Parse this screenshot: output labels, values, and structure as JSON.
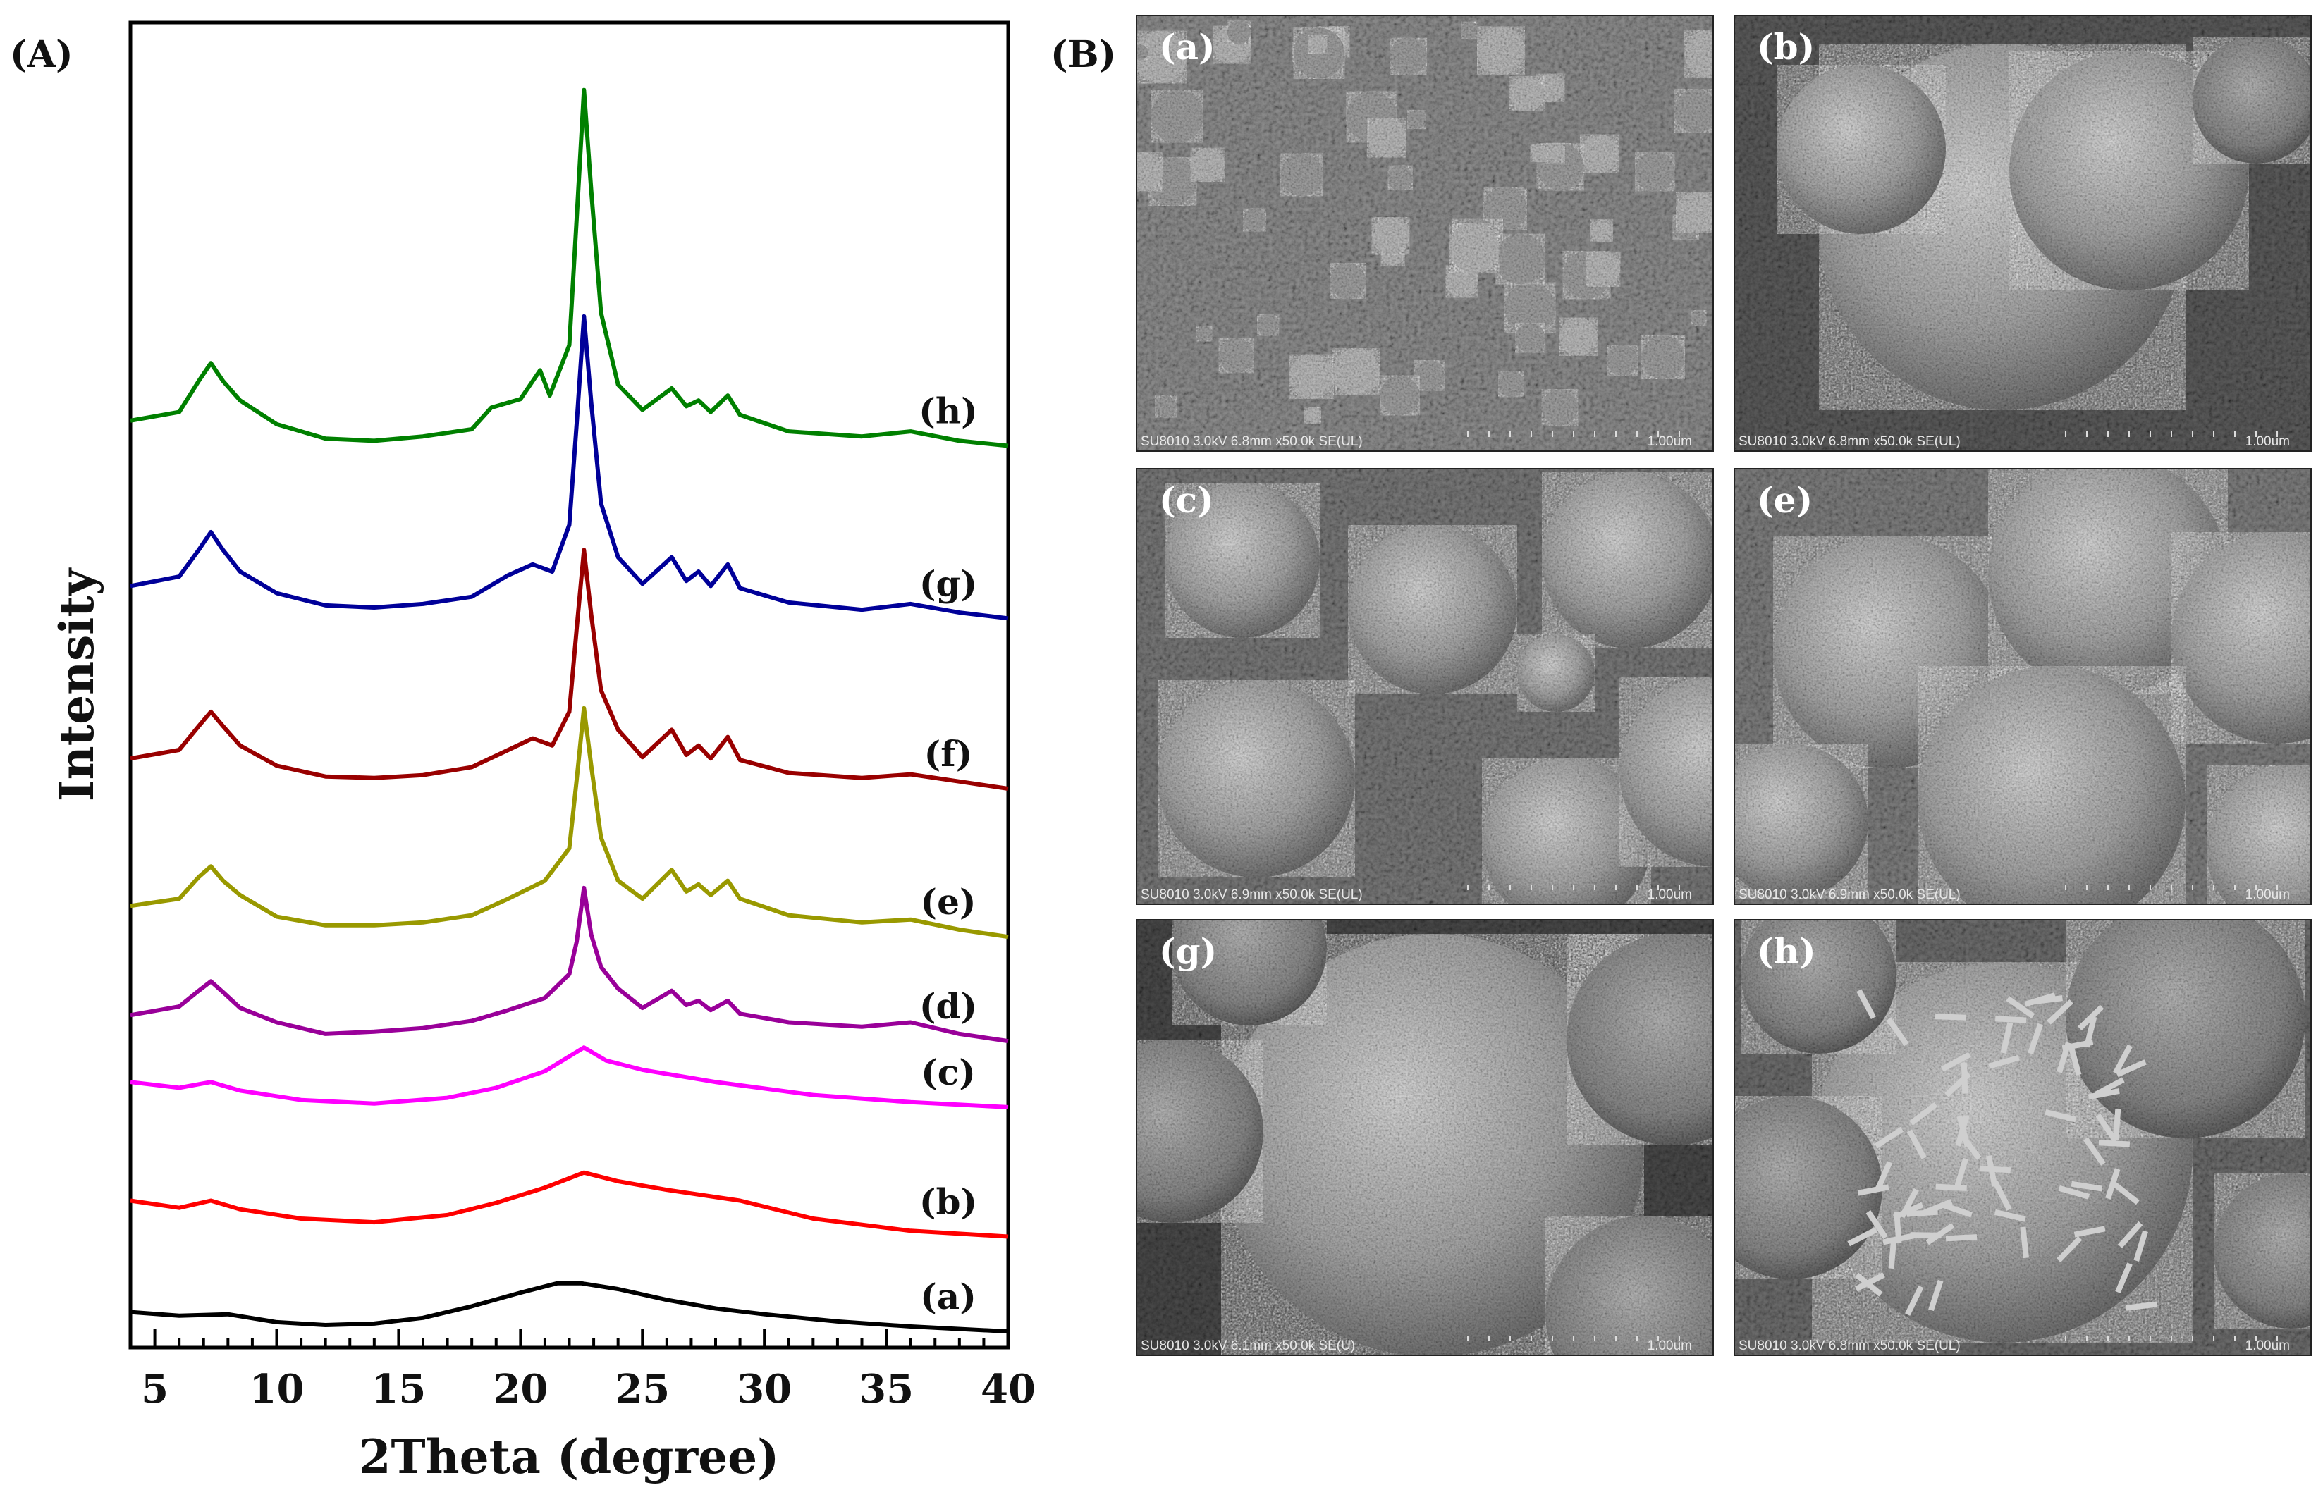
{
  "panels": {
    "A": "(A)",
    "B": "(B)"
  },
  "chart_data": {
    "type": "line",
    "xlabel": "2Theta (degree)",
    "ylabel": "Intensity",
    "xlim": [
      4,
      40
    ],
    "xticks": [
      5,
      10,
      15,
      20,
      25,
      30,
      35,
      40
    ],
    "yticks_shown": false,
    "grid": false,
    "legend": "inline labels at right",
    "series": [
      {
        "name": "(a)",
        "color": "#000000",
        "baseline": 0.0,
        "points": [
          [
            4,
            0.2
          ],
          [
            6,
            0.15
          ],
          [
            8,
            0.17
          ],
          [
            10,
            0.06
          ],
          [
            12,
            0.02
          ],
          [
            14,
            0.04
          ],
          [
            16,
            0.12
          ],
          [
            18,
            0.28
          ],
          [
            20,
            0.47
          ],
          [
            21.5,
            0.6
          ],
          [
            22.5,
            0.6
          ],
          [
            24,
            0.52
          ],
          [
            26,
            0.37
          ],
          [
            28,
            0.25
          ],
          [
            30,
            0.17
          ],
          [
            31.5,
            0.12
          ],
          [
            33,
            0.07
          ],
          [
            36,
            0.0
          ],
          [
            40,
            -0.07
          ]
        ]
      },
      {
        "name": "(b)",
        "color": "#ff0000",
        "baseline": 1.75,
        "points": [
          [
            4,
            0.0
          ],
          [
            6,
            -0.1
          ],
          [
            7.3,
            0.0
          ],
          [
            8.5,
            -0.12
          ],
          [
            11,
            -0.25
          ],
          [
            14,
            -0.3
          ],
          [
            17,
            -0.2
          ],
          [
            19,
            -0.03
          ],
          [
            21,
            0.18
          ],
          [
            22.6,
            0.39
          ],
          [
            24,
            0.27
          ],
          [
            26,
            0.15
          ],
          [
            29,
            0.0
          ],
          [
            32,
            -0.25
          ],
          [
            36,
            -0.42
          ],
          [
            40,
            -0.5
          ]
        ]
      },
      {
        "name": "(c)",
        "color": "#ff00ff",
        "baseline": 3.1,
        "points": [
          [
            4,
            0.3
          ],
          [
            6,
            0.22
          ],
          [
            7.3,
            0.3
          ],
          [
            8.5,
            0.18
          ],
          [
            11,
            0.05
          ],
          [
            14,
            0.0
          ],
          [
            17,
            0.08
          ],
          [
            19,
            0.22
          ],
          [
            21,
            0.45
          ],
          [
            22.6,
            0.78
          ],
          [
            23.5,
            0.6
          ],
          [
            25,
            0.47
          ],
          [
            28,
            0.3
          ],
          [
            32,
            0.12
          ],
          [
            36,
            0.02
          ],
          [
            40,
            -0.05
          ]
        ]
      },
      {
        "name": "(d)",
        "color": "#990099",
        "baseline": 3.95,
        "points": [
          [
            4,
            0.38
          ],
          [
            6,
            0.5
          ],
          [
            6.8,
            0.72
          ],
          [
            7.3,
            0.85
          ],
          [
            7.8,
            0.7
          ],
          [
            8.5,
            0.48
          ],
          [
            10,
            0.28
          ],
          [
            12,
            0.12
          ],
          [
            14,
            0.15
          ],
          [
            16,
            0.2
          ],
          [
            18,
            0.3
          ],
          [
            19.5,
            0.45
          ],
          [
            21,
            0.62
          ],
          [
            22,
            0.95
          ],
          [
            22.3,
            1.4
          ],
          [
            22.6,
            2.15
          ],
          [
            22.9,
            1.5
          ],
          [
            23.3,
            1.05
          ],
          [
            24,
            0.75
          ],
          [
            25,
            0.48
          ],
          [
            26.2,
            0.72
          ],
          [
            26.8,
            0.52
          ],
          [
            27.3,
            0.58
          ],
          [
            27.8,
            0.45
          ],
          [
            28.5,
            0.58
          ],
          [
            29,
            0.4
          ],
          [
            31,
            0.28
          ],
          [
            34,
            0.22
          ],
          [
            36,
            0.28
          ],
          [
            38,
            0.12
          ],
          [
            40,
            0.02
          ]
        ]
      },
      {
        "name": "(e)",
        "color": "#999900",
        "baseline": 5.0,
        "points": [
          [
            4,
            0.85
          ],
          [
            6,
            0.95
          ],
          [
            6.8,
            1.25
          ],
          [
            7.3,
            1.4
          ],
          [
            7.8,
            1.2
          ],
          [
            8.5,
            1.0
          ],
          [
            10,
            0.7
          ],
          [
            12,
            0.58
          ],
          [
            14,
            0.58
          ],
          [
            16,
            0.62
          ],
          [
            18,
            0.72
          ],
          [
            19.5,
            0.95
          ],
          [
            21,
            1.2
          ],
          [
            22,
            1.65
          ],
          [
            22.3,
            2.6
          ],
          [
            22.6,
            3.6
          ],
          [
            22.9,
            2.8
          ],
          [
            23.3,
            1.8
          ],
          [
            24,
            1.2
          ],
          [
            25,
            0.95
          ],
          [
            26.2,
            1.35
          ],
          [
            26.8,
            1.05
          ],
          [
            27.3,
            1.15
          ],
          [
            27.8,
            1.0
          ],
          [
            28.5,
            1.2
          ],
          [
            29,
            0.95
          ],
          [
            31,
            0.72
          ],
          [
            34,
            0.62
          ],
          [
            36,
            0.66
          ],
          [
            38,
            0.52
          ],
          [
            40,
            0.42
          ]
        ]
      },
      {
        "name": "(f)",
        "color": "#990000",
        "baseline": 7.3,
        "points": [
          [
            4,
            0.6
          ],
          [
            6,
            0.72
          ],
          [
            6.8,
            1.05
          ],
          [
            7.3,
            1.25
          ],
          [
            7.8,
            1.05
          ],
          [
            8.5,
            0.78
          ],
          [
            10,
            0.5
          ],
          [
            12,
            0.35
          ],
          [
            14,
            0.33
          ],
          [
            16,
            0.37
          ],
          [
            18,
            0.48
          ],
          [
            19.5,
            0.72
          ],
          [
            20.5,
            0.88
          ],
          [
            21.3,
            0.78
          ],
          [
            22,
            1.25
          ],
          [
            22.3,
            2.4
          ],
          [
            22.6,
            3.5
          ],
          [
            22.9,
            2.6
          ],
          [
            23.3,
            1.55
          ],
          [
            24,
            1.0
          ],
          [
            25,
            0.62
          ],
          [
            26.2,
            1.0
          ],
          [
            26.8,
            0.65
          ],
          [
            27.3,
            0.78
          ],
          [
            27.8,
            0.6
          ],
          [
            28.5,
            0.9
          ],
          [
            29,
            0.58
          ],
          [
            31,
            0.4
          ],
          [
            34,
            0.33
          ],
          [
            36,
            0.38
          ],
          [
            38,
            0.28
          ],
          [
            40,
            0.18
          ]
        ]
      },
      {
        "name": "(g)",
        "color": "#000099",
        "baseline": 9.55,
        "points": [
          [
            4,
            0.75
          ],
          [
            6,
            0.88
          ],
          [
            6.8,
            1.25
          ],
          [
            7.3,
            1.5
          ],
          [
            7.8,
            1.25
          ],
          [
            8.5,
            0.95
          ],
          [
            10,
            0.65
          ],
          [
            12,
            0.48
          ],
          [
            14,
            0.45
          ],
          [
            16,
            0.5
          ],
          [
            18,
            0.6
          ],
          [
            19.5,
            0.9
          ],
          [
            20.5,
            1.05
          ],
          [
            21.3,
            0.95
          ],
          [
            22,
            1.6
          ],
          [
            22.3,
            3.0
          ],
          [
            22.6,
            4.5
          ],
          [
            22.9,
            3.3
          ],
          [
            23.3,
            1.9
          ],
          [
            24,
            1.15
          ],
          [
            25,
            0.78
          ],
          [
            26.2,
            1.15
          ],
          [
            26.8,
            0.82
          ],
          [
            27.3,
            0.95
          ],
          [
            27.8,
            0.75
          ],
          [
            28.5,
            1.05
          ],
          [
            29,
            0.72
          ],
          [
            31,
            0.52
          ],
          [
            34,
            0.42
          ],
          [
            36,
            0.5
          ],
          [
            38,
            0.38
          ],
          [
            40,
            0.3
          ]
        ]
      },
      {
        "name": "(h)",
        "color": "#008000",
        "baseline": 12.0,
        "points": [
          [
            4,
            0.6
          ],
          [
            6,
            0.72
          ],
          [
            6.8,
            1.15
          ],
          [
            7.3,
            1.4
          ],
          [
            7.8,
            1.15
          ],
          [
            8.5,
            0.88
          ],
          [
            10,
            0.55
          ],
          [
            12,
            0.35
          ],
          [
            14,
            0.32
          ],
          [
            16,
            0.38
          ],
          [
            18,
            0.48
          ],
          [
            18.8,
            0.78
          ],
          [
            20,
            0.9
          ],
          [
            20.8,
            1.3
          ],
          [
            21.2,
            0.95
          ],
          [
            22,
            1.65
          ],
          [
            22.3,
            3.4
          ],
          [
            22.6,
            5.2
          ],
          [
            22.9,
            3.8
          ],
          [
            23.3,
            2.1
          ],
          [
            24,
            1.1
          ],
          [
            25,
            0.75
          ],
          [
            26.2,
            1.05
          ],
          [
            26.8,
            0.8
          ],
          [
            27.3,
            0.88
          ],
          [
            27.8,
            0.72
          ],
          [
            28.5,
            0.95
          ],
          [
            29,
            0.68
          ],
          [
            31,
            0.45
          ],
          [
            34,
            0.38
          ],
          [
            36,
            0.45
          ],
          [
            38,
            0.32
          ],
          [
            40,
            0.25
          ]
        ]
      }
    ]
  },
  "sem_images": [
    {
      "label": "(a)",
      "footer_left": "SU8010 3.0kV 6.8mm x50.0k SE(UL)",
      "footer_right": "1.00um",
      "style": "nanoparticles"
    },
    {
      "label": "(b)",
      "footer_left": "SU8010 3.0kV 6.8mm x50.0k SE(UL)",
      "footer_right": "1.00um",
      "style": "aggregate"
    },
    {
      "label": "(c)",
      "footer_left": "SU8010 3.0kV 6.9mm x50.0k SE(UL)",
      "footer_right": "1.00um",
      "style": "spheres-small"
    },
    {
      "label": "(e)",
      "footer_left": "SU8010 3.0kV 6.9mm x50.0k SE(UL)",
      "footer_right": "1.00um",
      "style": "spheres-rough"
    },
    {
      "label": "(g)",
      "footer_left": "SU8010 3.0kV 6.1mm x50.0k SE(U)",
      "footer_right": "1.00um",
      "style": "sphere-large"
    },
    {
      "label": "(h)",
      "footer_left": "SU8010 3.0kV 6.8mm x50.0k SE(UL)",
      "footer_right": "1.00um",
      "style": "rods"
    }
  ]
}
